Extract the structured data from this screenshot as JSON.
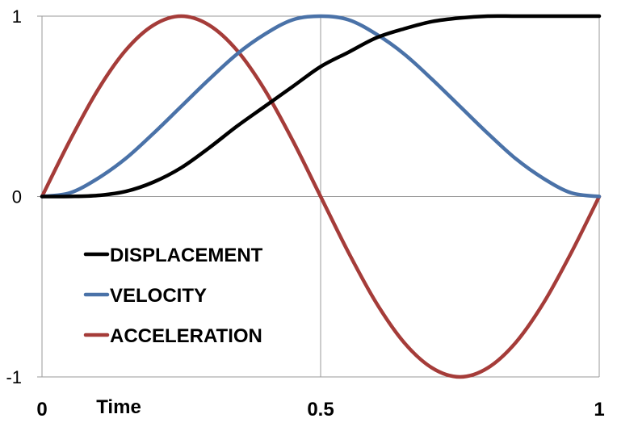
{
  "chart_data": {
    "type": "line",
    "title": "",
    "xlabel": "Time",
    "ylabel": "",
    "xlim": [
      0,
      1
    ],
    "ylim": [
      -1,
      1
    ],
    "x_ticks": [
      0,
      0.5,
      1
    ],
    "x_tick_labels": [
      "0",
      "0.5",
      "1"
    ],
    "y_ticks": [
      1,
      0,
      -1
    ],
    "y_tick_labels": [
      "1",
      "0",
      "-1"
    ],
    "grid": true,
    "legend_position": "center-left",
    "x": [
      0,
      0.05,
      0.1,
      0.15,
      0.2,
      0.25,
      0.3,
      0.35,
      0.4,
      0.45,
      0.5,
      0.55,
      0.6,
      0.65,
      0.7,
      0.75,
      0.8,
      0.85,
      0.9,
      0.95,
      1
    ],
    "series": [
      {
        "name": "DISPLACEMENT",
        "color": "#000000",
        "values": [
          0,
          0.0004,
          0.006,
          0.028,
          0.08,
          0.16,
          0.27,
          0.39,
          0.5,
          0.61,
          0.72,
          0.8,
          0.88,
          0.93,
          0.97,
          0.99,
          1,
          1,
          1,
          1,
          1
        ]
      },
      {
        "name": "VELOCITY",
        "color": "#4a72a8",
        "values": [
          0,
          0.02,
          0.1,
          0.21,
          0.35,
          0.5,
          0.65,
          0.79,
          0.9,
          0.98,
          1,
          0.98,
          0.9,
          0.79,
          0.65,
          0.5,
          0.35,
          0.21,
          0.1,
          0.02,
          0
        ]
      },
      {
        "name": "ACCELERATION",
        "color": "#a53c39",
        "values": [
          0,
          0.31,
          0.59,
          0.81,
          0.95,
          1,
          0.95,
          0.81,
          0.59,
          0.31,
          0,
          -0.31,
          -0.59,
          -0.81,
          -0.95,
          -1,
          -0.95,
          -0.81,
          -0.59,
          -0.31,
          0
        ]
      }
    ]
  }
}
